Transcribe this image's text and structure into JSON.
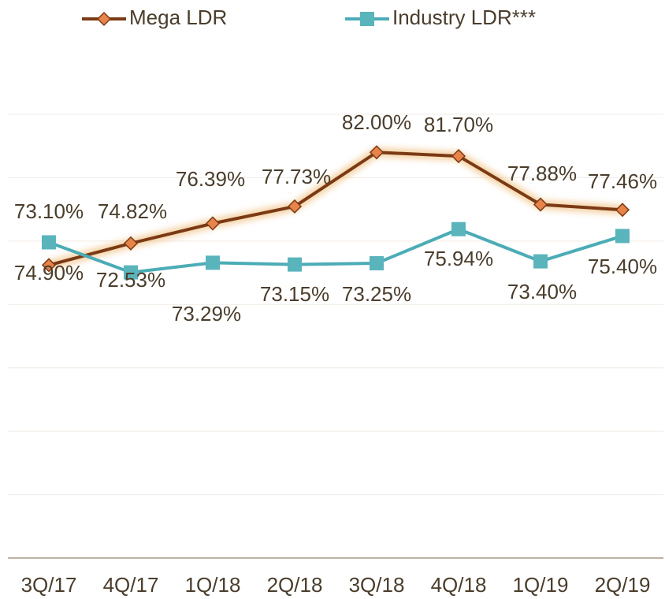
{
  "chart_data": {
    "type": "line",
    "categories": [
      "3Q/17",
      "4Q/17",
      "1Q/18",
      "2Q/18",
      "3Q/18",
      "4Q/18",
      "1Q/19",
      "2Q/19"
    ],
    "series": [
      {
        "name": "Mega LDR",
        "color": "#7b3a14",
        "marker_color": "#e8844a",
        "marker": "diamond",
        "values": [
          73.1,
          74.82,
          76.39,
          77.73,
          82.0,
          81.7,
          77.88,
          77.46
        ],
        "value_labels": [
          "73.10%",
          "74.82%",
          "76.39%",
          "77.73%",
          "82.00%",
          "81.70%",
          "77.88%",
          "77.46%"
        ]
      },
      {
        "name": "Industry LDR***",
        "color": "#4bacb6",
        "marker_color": "#5ab4bc",
        "marker": "square",
        "values": [
          74.9,
          72.53,
          73.29,
          73.15,
          73.25,
          75.94,
          73.4,
          75.4
        ],
        "value_labels": [
          "74.90%",
          "72.53%",
          "73.29%",
          "73.15%",
          "73.25%",
          "75.94%",
          "73.40%",
          "75.40%"
        ]
      }
    ],
    "ylim": [
      50,
      85
    ],
    "yticks": [
      50,
      55,
      60,
      65,
      70,
      75,
      80,
      85
    ],
    "grid": true,
    "legend": "top"
  }
}
